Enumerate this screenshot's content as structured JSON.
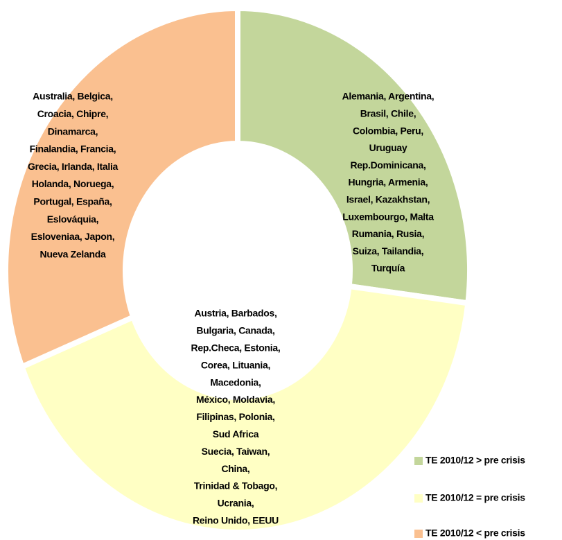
{
  "chart_data": {
    "type": "donut",
    "series": [
      {
        "name": "TE 2010/12  > pre crisis",
        "color": "#c3d69b",
        "values": [
          27
        ]
      },
      {
        "name": "TE 2010/12  = pre crisis",
        "color": "#ffffc4",
        "values": [
          42
        ]
      },
      {
        "name": "TE 2010/12  < pre crisis",
        "color": "#fac090",
        "values": [
          31
        ]
      }
    ],
    "segment_labels": [
      [
        "Alemania, Argentina,",
        "Brasil, Chile,",
        "Colombia, Peru,",
        "Uruguay",
        "Rep.Dominicana,",
        "Hungria, Armenia,",
        "Israel, Kazakhstan,",
        "Luxembourgo, Malta",
        "Rumania, Rusia,",
        "Suiza, Tailandia,",
        "Turquía"
      ],
      [
        "Austria, Barbados,",
        "Bulgaria, Canada,",
        "Rep.Checa, Estonia,",
        "Corea, Lituania,",
        "Macedonia,",
        "México, Moldavia,",
        "Filipinas, Polonia,",
        "Sud Africa",
        "Suecia, Taiwan,",
        "China,",
        "Trinidad & Tobago,",
        "Ucrania,",
        "Reino Unido,  EEUU"
      ],
      [
        "Australia, Belgica,",
        "Croacia, Chipre,",
        "Dinamarca,",
        "Finalandia, Francia,",
        "Grecia, Irlanda,  Italia",
        "Holanda, Noruega,",
        "Portugal, España,",
        "Eslováquia,",
        "Esloveniaa, Japon,",
        "Nueva Zelanda"
      ]
    ],
    "legend": "bottom-right"
  }
}
